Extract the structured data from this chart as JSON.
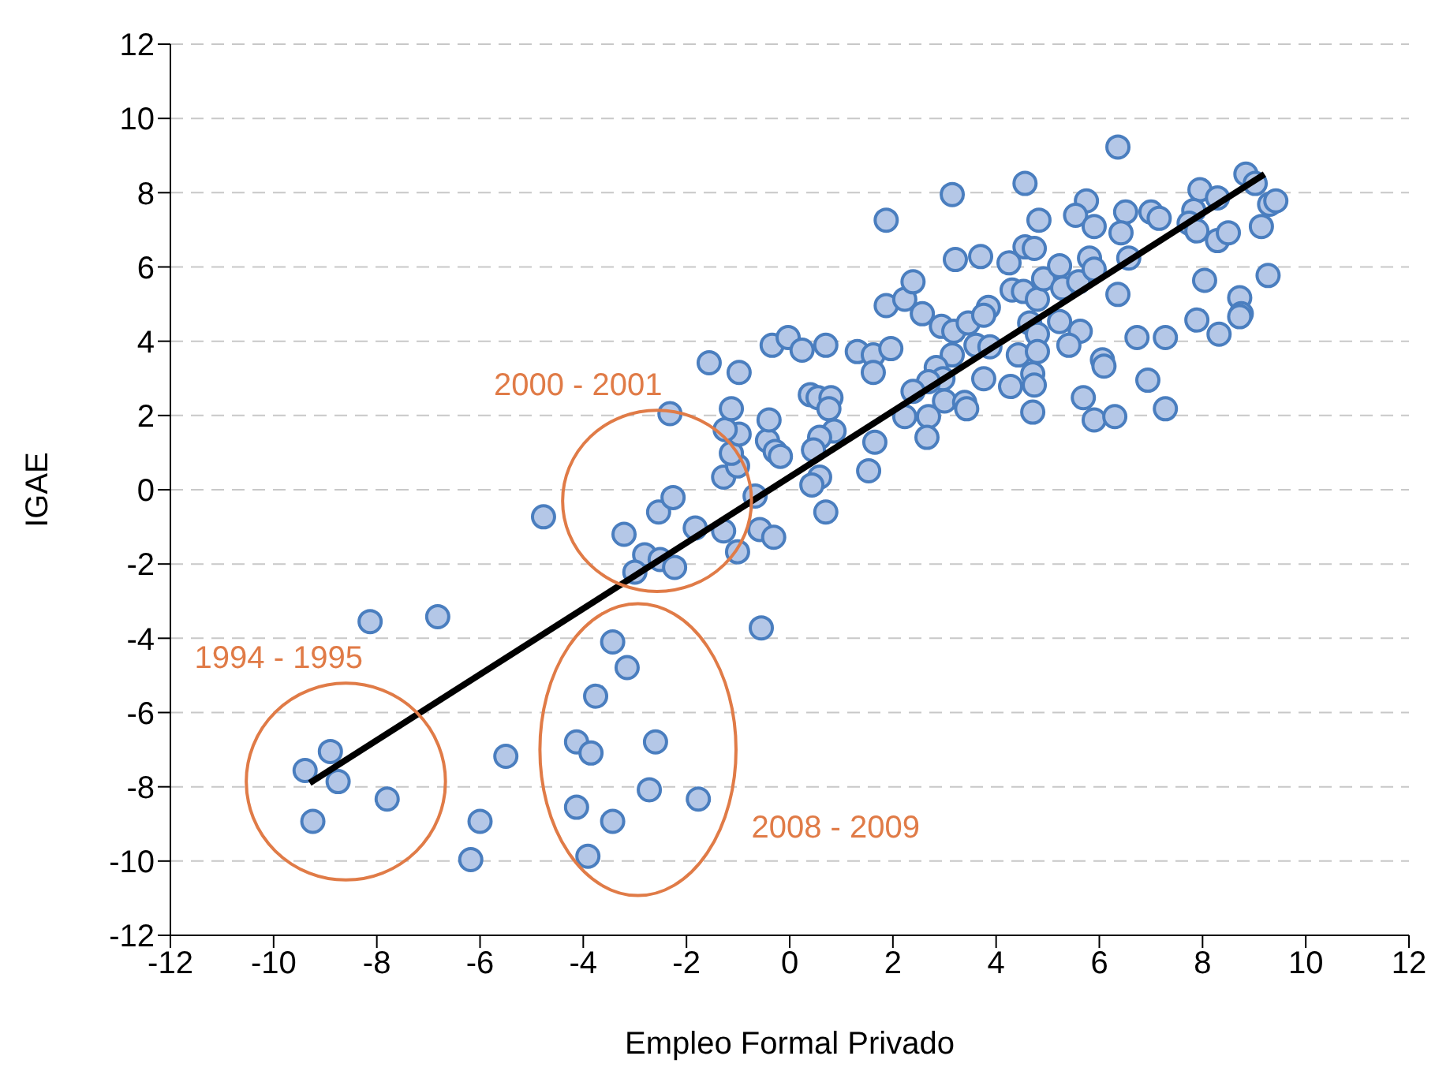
{
  "chart_data": {
    "type": "scatter",
    "xlabel": "Empleo Formal Privado",
    "ylabel": "IGAE",
    "xlim": [
      -12,
      12
    ],
    "ylim": [
      -12,
      12
    ],
    "xticks": [
      -12,
      -10,
      -8,
      -6,
      -4,
      -2,
      0,
      2,
      4,
      6,
      8,
      10,
      12
    ],
    "yticks": [
      -12,
      -10,
      -8,
      -6,
      -4,
      -2,
      0,
      2,
      4,
      6,
      8,
      10,
      12
    ],
    "grid": "y",
    "series": [
      {
        "marker": "circle",
        "color": "#4a7ebf",
        "x": [
          -9.39,
          -8.9,
          -8.75,
          -9.24,
          -7.8,
          -8.13,
          -6.82,
          -5.5,
          -6.0,
          -6.18,
          -0.55,
          -3.43,
          -3.15,
          -3.76,
          -4.13,
          -3.85,
          -2.6,
          -2.72,
          -1.77,
          -4.13,
          -3.43,
          -3.91,
          -4.77,
          -3.21,
          -2.54,
          -2.26,
          -2.32,
          -2.81,
          -3.0,
          -2.51,
          -2.23,
          -1.83,
          -1.28,
          -1.01,
          -0.58,
          -0.31,
          -0.67,
          -1.28,
          -1.01,
          -1.13,
          -0.98,
          -1.25,
          -1.13,
          -0.43,
          -0.28,
          -0.18,
          -0.4,
          -1.56,
          -0.98,
          -0.34,
          -0.03,
          0.24,
          0.7,
          1.31,
          1.62,
          1.62,
          1.96,
          1.87,
          3.15,
          4.56,
          4.83,
          3.21,
          3.7,
          4.25,
          4.56,
          4.74,
          1.87,
          2.23,
          2.39,
          2.57,
          2.94,
          3.18,
          3.46,
          3.85,
          3.76,
          4.31,
          4.53,
          4.8,
          4.92,
          5.23,
          5.29,
          5.6,
          5.23,
          5.63,
          5.41,
          5.69,
          4.65,
          4.8,
          4.43,
          4.8,
          4.71,
          4.74,
          4.28,
          4.71,
          3.76,
          3.61,
          3.88,
          3.15,
          2.84,
          2.97,
          2.69,
          2.39,
          3.0,
          3.39,
          3.43,
          2.69,
          2.23,
          2.66,
          1.65,
          1.53,
          0.4,
          0.55,
          0.8,
          0.76,
          0.86,
          0.58,
          0.46,
          0.58,
          0.43,
          0.7,
          6.36,
          5.75,
          5.54,
          5.9,
          6.51,
          6.42,
          7.0,
          7.16,
          6.57,
          5.81,
          5.9,
          6.36,
          6.06,
          6.09,
          6.73,
          7.28,
          5.9,
          6.3,
          6.94,
          7.28,
          7.95,
          8.29,
          7.83,
          7.74,
          7.89,
          8.29,
          8.5,
          8.84,
          9.02,
          9.3,
          9.42,
          9.14,
          8.04,
          9.27,
          8.72,
          8.75,
          8.72,
          7.89,
          8.32
        ],
        "values": [
          -7.56,
          -7.05,
          -7.86,
          -8.93,
          -8.33,
          -3.55,
          -3.42,
          -7.18,
          -8.93,
          -9.96,
          -3.72,
          -4.1,
          -4.79,
          -5.56,
          -6.79,
          -7.09,
          -6.79,
          -8.08,
          -8.33,
          -8.55,
          -8.93,
          -9.87,
          -0.73,
          -1.2,
          -0.6,
          -0.21,
          2.05,
          -1.75,
          -2.22,
          -1.88,
          -2.09,
          -1.03,
          -1.11,
          -1.67,
          -1.07,
          -1.28,
          -0.17,
          0.34,
          0.64,
          0.98,
          1.5,
          1.62,
          2.18,
          1.32,
          1.03,
          0.9,
          1.88,
          3.42,
          3.16,
          3.89,
          4.1,
          3.76,
          3.89,
          3.72,
          3.63,
          3.16,
          3.8,
          7.26,
          7.95,
          8.25,
          7.26,
          6.2,
          6.28,
          6.11,
          6.54,
          6.5,
          4.96,
          5.13,
          5.6,
          4.74,
          4.4,
          4.27,
          4.49,
          4.91,
          4.7,
          5.38,
          5.34,
          5.13,
          5.68,
          6.03,
          5.43,
          5.6,
          4.53,
          4.27,
          3.89,
          2.48,
          4.49,
          4.19,
          3.63,
          3.72,
          3.12,
          2.82,
          2.78,
          2.09,
          2.99,
          3.89,
          3.85,
          3.63,
          3.29,
          2.99,
          2.91,
          2.65,
          2.39,
          2.35,
          2.18,
          1.97,
          1.97,
          1.41,
          1.28,
          0.51,
          2.56,
          2.48,
          2.48,
          2.18,
          1.58,
          1.41,
          1.07,
          0.34,
          0.13,
          -0.6,
          9.23,
          7.78,
          7.39,
          7.09,
          7.48,
          6.92,
          7.48,
          7.31,
          6.24,
          6.24,
          5.94,
          5.26,
          3.5,
          3.33,
          4.1,
          4.1,
          1.88,
          1.97,
          2.95,
          2.18,
          8.08,
          7.86,
          7.52,
          7.18,
          6.97,
          6.71,
          6.92,
          8.5,
          8.25,
          7.69,
          7.78,
          7.09,
          5.64,
          5.77,
          5.17,
          4.74,
          4.66,
          4.57,
          4.19
        ]
      },
      {
        "type": "line",
        "color": "#000000",
        "x": [
          -9.3,
          9.2
        ],
        "values": [
          -7.9,
          8.5
        ]
      }
    ],
    "annotations": [
      "2000 - 2001",
      "1994 - 1995",
      "2008 - 2009"
    ]
  }
}
